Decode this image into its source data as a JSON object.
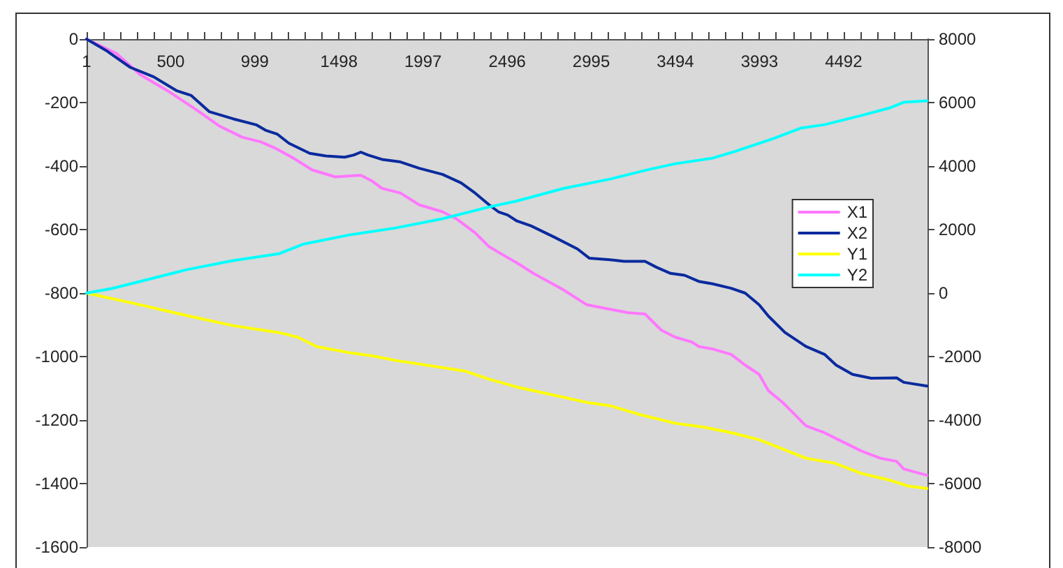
{
  "chart_data": {
    "type": "line",
    "legend": "right",
    "grid": false,
    "marker": "none",
    "line_style": "solid",
    "xlim": [
      1,
      4990
    ],
    "xticks": [
      1,
      {
        "value": 100.8,
        "label": null
      },
      {
        "value": 200.6,
        "label": null
      },
      {
        "value": 300.4,
        "label": null
      },
      {
        "value": 400.2,
        "label": null
      },
      500,
      {
        "value": 599.8,
        "label": null
      },
      {
        "value": 699.6,
        "label": null
      },
      {
        "value": 799.4,
        "label": null
      },
      {
        "value": 899.2,
        "label": null
      },
      999,
      {
        "value": 1098.8,
        "label": null
      },
      {
        "value": 1198.6,
        "label": null
      },
      {
        "value": 1298.4,
        "label": null
      },
      {
        "value": 1398.2,
        "label": null
      },
      1498,
      {
        "value": 1597.8,
        "label": null
      },
      {
        "value": 1697.6,
        "label": null
      },
      {
        "value": 1797.4,
        "label": null
      },
      {
        "value": 1897.2,
        "label": null
      },
      1997,
      {
        "value": 2096.8,
        "label": null
      },
      {
        "value": 2196.6,
        "label": null
      },
      {
        "value": 2296.4,
        "label": null
      },
      {
        "value": 2396.2,
        "label": null
      },
      2496,
      {
        "value": 2595.8,
        "label": null
      },
      {
        "value": 2695.6,
        "label": null
      },
      {
        "value": 2795.4,
        "label": null
      },
      {
        "value": 2895.2,
        "label": null
      },
      2995,
      {
        "value": 3094.8,
        "label": null
      },
      {
        "value": 3194.6,
        "label": null
      },
      {
        "value": 3294.4,
        "label": null
      },
      {
        "value": 3394.2,
        "label": null
      },
      3494,
      {
        "value": 3593.8,
        "label": null
      },
      {
        "value": 3693.6,
        "label": null
      },
      {
        "value": 3793.4,
        "label": null
      },
      {
        "value": 3893.2,
        "label": null
      },
      3993,
      {
        "value": 4092.8,
        "label": null
      },
      {
        "value": 4192.6,
        "label": null
      },
      {
        "value": 4292.4,
        "label": null
      },
      {
        "value": 4392.2,
        "label": null
      },
      4492,
      {
        "value": 4591.8,
        "label": null
      },
      {
        "value": 4691.6,
        "label": null
      },
      {
        "value": 4791.4,
        "label": null
      },
      {
        "value": 4891.2,
        "label": null
      }
    ],
    "ylim": [
      -1600,
      0
    ],
    "yticks": [
      0,
      -200,
      -400,
      -600,
      -800,
      -1000,
      -1200,
      -1400,
      -1600
    ],
    "y2lim": [
      -8000,
      8000
    ],
    "y2ticks": [
      8000,
      6000,
      4000,
      2000,
      0,
      -2000,
      -4000,
      -6000,
      -8000
    ],
    "series": [
      {
        "name": "X1",
        "color": "#ff77ff",
        "x": [
          1,
          178,
          316,
          482,
          648,
          786,
          924,
          1035,
          1118,
          1228,
          1339,
          1477,
          1628,
          1697,
          1753,
          1863,
          1974,
          2112,
          2195,
          2306,
          2389,
          2472,
          2554,
          2665,
          2831,
          2969,
          3107,
          3217,
          3314,
          3411,
          3494,
          3591,
          3632,
          3715,
          3825,
          3908,
          3991,
          4047,
          4130,
          4213,
          4268,
          4379,
          4489,
          4600,
          4710,
          4807,
          4849,
          4987
        ],
        "values": [
          0,
          -45,
          -111,
          -163,
          -221,
          -273,
          -309,
          -324,
          -343,
          -375,
          -412,
          -434,
          -429,
          -448,
          -470,
          -485,
          -522,
          -544,
          -566,
          -610,
          -654,
          -680,
          -705,
          -742,
          -790,
          -837,
          -851,
          -862,
          -866,
          -917,
          -939,
          -954,
          -968,
          -976,
          -993,
          -1027,
          -1056,
          -1108,
          -1144,
          -1188,
          -1218,
          -1240,
          -1269,
          -1298,
          -1320,
          -1330,
          -1354,
          -1374
        ]
      },
      {
        "name": "X2",
        "color": "#0a2a9e",
        "x": [
          1,
          123,
          260,
          399,
          537,
          620,
          730,
          869,
          1007,
          1062,
          1131,
          1201,
          1325,
          1421,
          1532,
          1587,
          1628,
          1670,
          1753,
          1863,
          1974,
          2112,
          2223,
          2306,
          2389,
          2444,
          2499,
          2554,
          2637,
          2776,
          2913,
          2983,
          3107,
          3190,
          3314,
          3383,
          3466,
          3549,
          3632,
          3715,
          3825,
          3908,
          3991,
          4047,
          4144,
          4268,
          4379,
          4448,
          4545,
          4655,
          4807,
          4849,
          4987
        ],
        "values": [
          0,
          -38,
          -89,
          -119,
          -163,
          -177,
          -229,
          -251,
          -270,
          -287,
          -299,
          -328,
          -360,
          -368,
          -372,
          -365,
          -356,
          -365,
          -379,
          -387,
          -407,
          -426,
          -453,
          -485,
          -522,
          -544,
          -554,
          -573,
          -588,
          -624,
          -661,
          -690,
          -695,
          -700,
          -700,
          -719,
          -738,
          -744,
          -763,
          -771,
          -785,
          -800,
          -837,
          -873,
          -924,
          -968,
          -993,
          -1027,
          -1056,
          -1068,
          -1067,
          -1081,
          -1093
        ]
      },
      {
        "name": "Y1",
        "color": "#ffff00",
        "axis": "y2",
        "x": [
          1,
          316,
          592,
          869,
          1145,
          1256,
          1366,
          1560,
          1697,
          1836,
          2112,
          2250,
          2389,
          2554,
          2720,
          2969,
          3107,
          3273,
          3494,
          3660,
          3825,
          3991,
          4130,
          4268,
          4434,
          4600,
          4766,
          4876,
          4987
        ],
        "values": [
          0,
          -366,
          -704,
          -1025,
          -1245,
          -1394,
          -1685,
          -1877,
          -1979,
          -2124,
          -2344,
          -2462,
          -2713,
          -2960,
          -3153,
          -3443,
          -3548,
          -3812,
          -4102,
          -4221,
          -4397,
          -4617,
          -4911,
          -5201,
          -5351,
          -5685,
          -5891,
          -6080,
          -6155
        ]
      },
      {
        "name": "Y2",
        "color": "#00ffff",
        "axis": "y2",
        "x": [
          1,
          150,
          316,
          592,
          869,
          1145,
          1284,
          1560,
          1836,
          2112,
          2389,
          2554,
          2831,
          3107,
          3328,
          3494,
          3715,
          3853,
          4075,
          4241,
          4379,
          4600,
          4766,
          4849,
          4987
        ],
        "values": [
          0,
          144,
          364,
          733,
          1023,
          1243,
          1538,
          1832,
          2052,
          2342,
          2712,
          2901,
          3296,
          3591,
          3881,
          4074,
          4250,
          4470,
          4866,
          5200,
          5305,
          5595,
          5833,
          6009,
          6053
        ]
      }
    ]
  }
}
